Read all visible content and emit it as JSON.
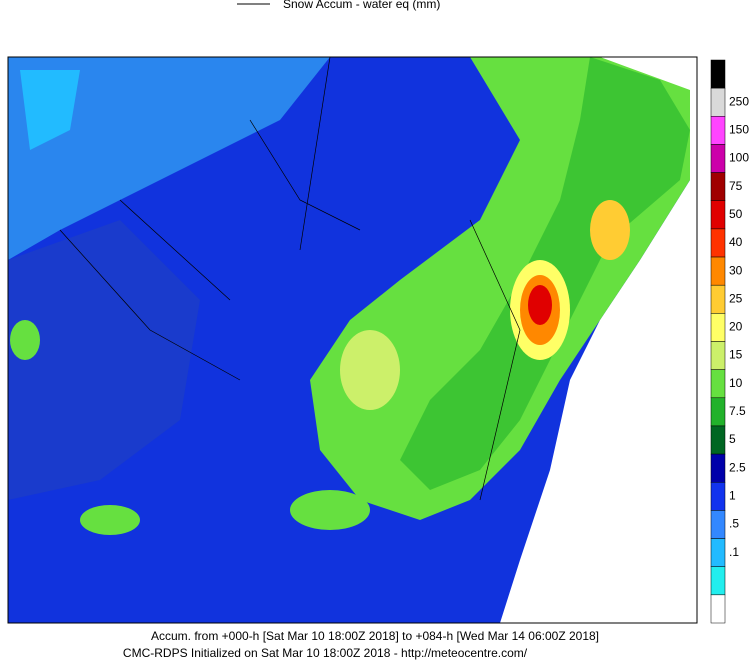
{
  "legend": {
    "title": "Snow Accum - water eq (mm)"
  },
  "colorbar": {
    "colors": [
      "#000000",
      "#d9d9d9",
      "#ff44ff",
      "#cc00aa",
      "#a00000",
      "#e00000",
      "#ff3300",
      "#ff8800",
      "#ffcc33",
      "#ffff66",
      "#ccf06a",
      "#66e040",
      "#22b22b",
      "#006622",
      "#0000aa",
      "#1133ee",
      "#3388ff",
      "#22bbff",
      "#22eeee",
      "#ffffff"
    ],
    "labels": [
      "250",
      "150",
      "100",
      "75",
      "50",
      "40",
      "30",
      "25",
      "20",
      "15",
      "10",
      "7.5",
      "5",
      "2.5",
      "1",
      ".5",
      ".1"
    ]
  },
  "footer": {
    "line1": "Accum. from +000-h [Sat Mar 10 18:00Z 2018] to +084-h [Wed Mar 14 06:00Z 2018]",
    "line2": "CMC-RDPS Initialized on Sat Mar 10 18:00Z 2018 - http://meteocentre.com/"
  }
}
